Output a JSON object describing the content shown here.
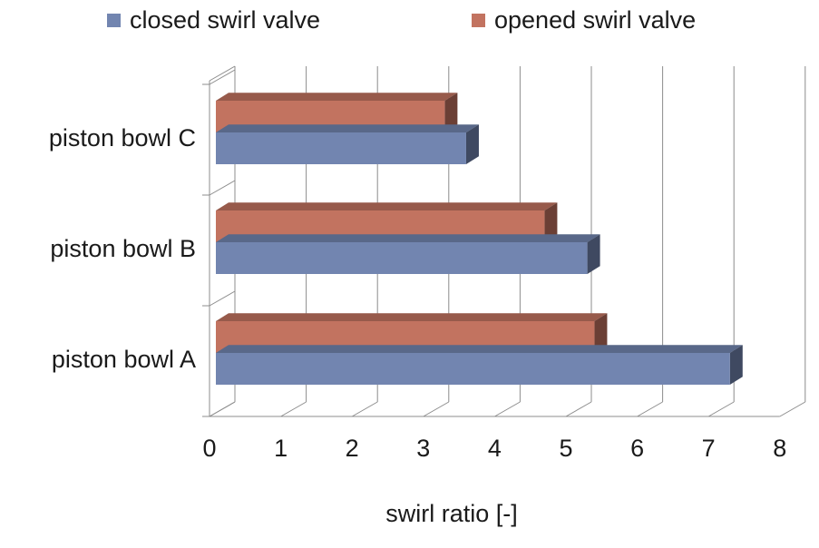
{
  "chart_data": {
    "type": "bar",
    "orientation": "horizontal",
    "three_d": true,
    "categories": [
      "piston bowl A",
      "piston bowl B",
      "piston bowl C"
    ],
    "series": [
      {
        "name": "closed swirl valve",
        "color": "#7285b0",
        "values": [
          7.3,
          5.3,
          3.6
        ]
      },
      {
        "name": "opened swirl valve",
        "color": "#c27360",
        "values": [
          5.4,
          4.7,
          3.3
        ]
      }
    ],
    "xlabel": "swirl ratio [-]",
    "ylabel": "",
    "title": "",
    "xlim": [
      0,
      8
    ],
    "xticks": [
      "0",
      "1",
      "2",
      "3",
      "4",
      "5",
      "6",
      "7",
      "8"
    ],
    "grid": true,
    "legend": "top"
  }
}
